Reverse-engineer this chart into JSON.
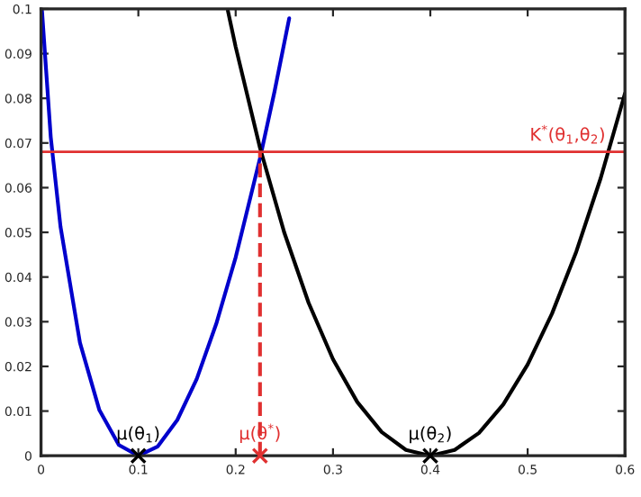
{
  "chart_data": {
    "type": "line",
    "xlim": [
      0,
      0.6
    ],
    "ylim": [
      0,
      0.1
    ],
    "xticks": [
      0,
      0.1,
      0.2,
      0.3,
      0.4,
      0.5,
      0.6
    ],
    "yticks": [
      0,
      0.01,
      0.02,
      0.03,
      0.04,
      0.05,
      0.06,
      0.07,
      0.08,
      0.09,
      0.1
    ],
    "grid": false,
    "legend": false,
    "series": [
      {
        "color": "#0000cc",
        "x": [
          0.001,
          0.01,
          0.02,
          0.04,
          0.06,
          0.08,
          0.1,
          0.12,
          0.14,
          0.16,
          0.18,
          0.2,
          0.225,
          0.24,
          0.255
        ],
        "values": [
          0.0996,
          0.0713,
          0.0513,
          0.0253,
          0.0102,
          0.0024,
          0,
          0.0021,
          0.008,
          0.0172,
          0.0295,
          0.0444,
          0.0666,
          0.0816,
          0.0979
        ],
        "line_style": "solid",
        "marker": "none"
      },
      {
        "color": "#000000",
        "x": [
          0.192,
          0.2,
          0.225,
          0.25,
          0.275,
          0.3,
          0.325,
          0.35,
          0.375,
          0.4,
          0.425,
          0.45,
          0.475,
          0.5,
          0.525,
          0.55,
          0.575,
          0.6
        ],
        "values": [
          0.0996,
          0.0915,
          0.0689,
          0.0499,
          0.0342,
          0.0216,
          0.012,
          0.0053,
          0.0013,
          0,
          0.0013,
          0.0051,
          0.0115,
          0.0204,
          0.0318,
          0.0457,
          0.0621,
          0.0811
        ],
        "line_style": "solid",
        "marker": "none"
      },
      {
        "color": "#e03030",
        "x": [
          0.225,
          0.225
        ],
        "values": [
          0,
          0.068
        ],
        "line_style": "dashed",
        "marker": "none"
      },
      {
        "type": "scatter",
        "name": "μ(θ$_{1}$)",
        "color": "#000000",
        "x": [
          0.1
        ],
        "values": [
          0
        ],
        "marker": "cross"
      },
      {
        "type": "scatter",
        "name": "μ(θ$_{2}$)",
        "color": "#000000",
        "x": [
          0.4
        ],
        "values": [
          0
        ],
        "marker": "cross"
      },
      {
        "type": "scatter",
        "name": "μ(θ$^{*}$)",
        "color": "#e03030",
        "x": [
          0.225
        ],
        "values": [
          0
        ],
        "marker": "cross"
      }
    ],
    "ref_lines": [
      {
        "axis": "y",
        "value": 0.068,
        "label": "K$^{*}$(θ$_{1}$,θ$_{2}$)",
        "color": "#e03030"
      }
    ]
  }
}
